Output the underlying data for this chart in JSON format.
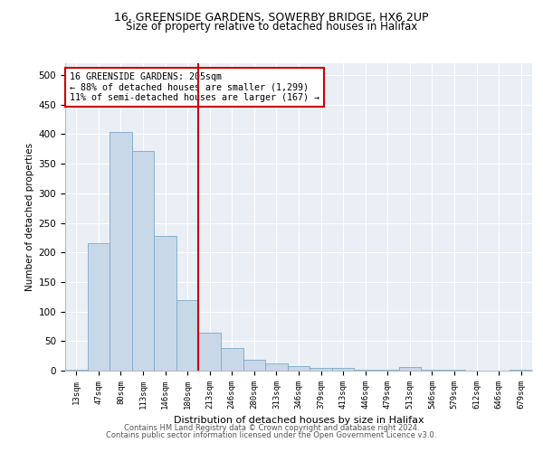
{
  "title1": "16, GREENSIDE GARDENS, SOWERBY BRIDGE, HX6 2UP",
  "title2": "Size of property relative to detached houses in Halifax",
  "xlabel": "Distribution of detached houses by size in Halifax",
  "ylabel": "Number of detached properties",
  "bar_labels": [
    "13sqm",
    "47sqm",
    "80sqm",
    "113sqm",
    "146sqm",
    "180sqm",
    "213sqm",
    "246sqm",
    "280sqm",
    "313sqm",
    "346sqm",
    "379sqm",
    "413sqm",
    "446sqm",
    "479sqm",
    "513sqm",
    "546sqm",
    "579sqm",
    "612sqm",
    "646sqm",
    "679sqm"
  ],
  "bar_values": [
    2,
    215,
    403,
    372,
    228,
    120,
    64,
    38,
    18,
    12,
    7,
    5,
    5,
    1,
    1,
    6,
    1,
    1,
    0,
    0,
    2
  ],
  "bar_color": "#c8d8e8",
  "bar_edge_color": "#7aaac8",
  "vline_color": "#cc0000",
  "vline_pos": 5.5,
  "annotation_text": "16 GREENSIDE GARDENS: 205sqm\n← 88% of detached houses are smaller (1,299)\n11% of semi-detached houses are larger (167) →",
  "annotation_box_color": "#ffffff",
  "annotation_box_edge": "#cc0000",
  "ylim": [
    0,
    520
  ],
  "yticks": [
    0,
    50,
    100,
    150,
    200,
    250,
    300,
    350,
    400,
    450,
    500
  ],
  "bg_color": "#eaeef5",
  "footer1": "Contains HM Land Registry data © Crown copyright and database right 2024.",
  "footer2": "Contains public sector information licensed under the Open Government Licence v3.0."
}
